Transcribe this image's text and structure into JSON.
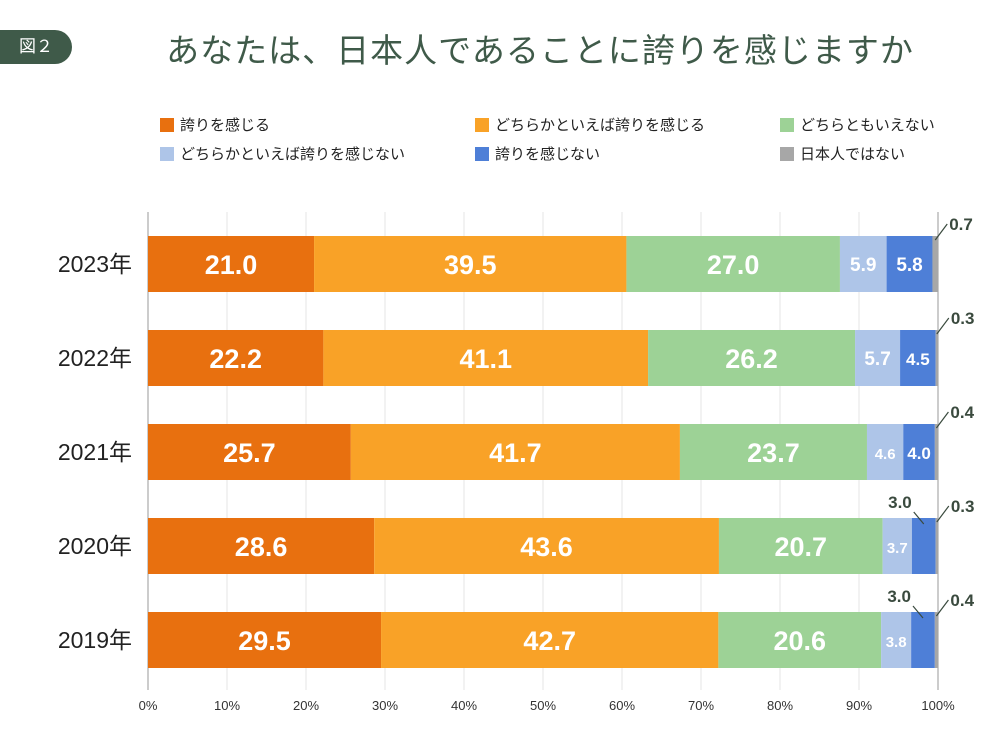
{
  "header": {
    "badge": "図２",
    "title": "あなたは、日本人であることに誇りを感じますか"
  },
  "colors": {
    "proud": "#e8700f",
    "somewhat_proud": "#f9a227",
    "neutral": "#9dd296",
    "somewhat_not": "#aec5e8",
    "not_proud": "#4e7fd7",
    "not_japanese": "#a7a7a7",
    "axis": "#bbbbbb",
    "grid": "#e6e6e6"
  },
  "chart_data": {
    "type": "bar",
    "orientation": "horizontal",
    "stacked": true,
    "categories": [
      "2023年",
      "2022年",
      "2021年",
      "2020年",
      "2019年"
    ],
    "series": [
      {
        "name": "誇りを感じる",
        "color_key": "proud",
        "values": [
          21.0,
          22.2,
          25.7,
          28.6,
          29.5
        ]
      },
      {
        "name": "どちらかといえば誇りを感じる",
        "color_key": "somewhat_proud",
        "values": [
          39.5,
          41.1,
          41.7,
          43.6,
          42.7
        ]
      },
      {
        "name": "どちらともいえない",
        "color_key": "neutral",
        "values": [
          27.0,
          26.2,
          23.7,
          20.7,
          20.6
        ]
      },
      {
        "name": "どちらかといえば誇りを感じない",
        "color_key": "somewhat_not",
        "values": [
          5.9,
          5.7,
          4.6,
          3.7,
          3.8
        ]
      },
      {
        "name": "誇りを感じない",
        "color_key": "not_proud",
        "values": [
          5.8,
          4.5,
          4.0,
          3.0,
          3.0
        ]
      },
      {
        "name": "日本人ではない",
        "color_key": "not_japanese",
        "values": [
          0.7,
          0.3,
          0.4,
          0.3,
          0.4
        ]
      }
    ],
    "value_labels": [
      [
        "21.0",
        "39.5",
        "27.0",
        "5.9",
        "5.8",
        "0.7"
      ],
      [
        "22.2",
        "41.1",
        "26.2",
        "5.7",
        "4.5",
        "0.3"
      ],
      [
        "25.7",
        "41.7",
        "23.7",
        "4.6",
        "4.0",
        "0.4"
      ],
      [
        "28.6",
        "43.6",
        "20.7",
        "3.7",
        "3.0",
        "0.3"
      ],
      [
        "29.5",
        "42.7",
        "20.6",
        "3.8",
        "3.0",
        "0.4"
      ]
    ],
    "xlim": [
      0,
      100
    ],
    "xticks": [
      "0%",
      "10%",
      "20%",
      "30%",
      "40%",
      "50%",
      "60%",
      "70%",
      "80%",
      "90%",
      "100%"
    ],
    "grid": true,
    "legend_position": "top"
  }
}
